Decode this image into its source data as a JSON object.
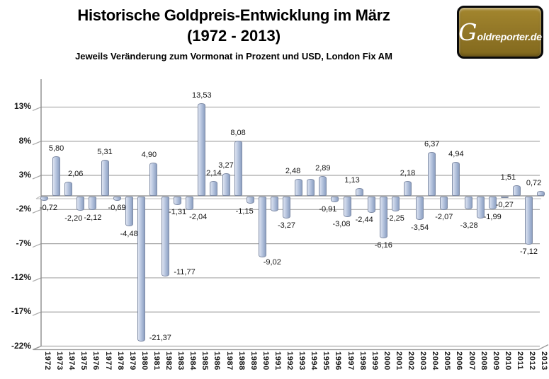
{
  "header": {
    "title_line1": "Historische Goldpreis-Entwicklung im März",
    "title_line2": "(1972 - 2013)",
    "subtitle": "Jeweils Veränderung zum Vormonat in Prozent und USD, London Fix AM",
    "logo": {
      "initial": "G",
      "rest": "oldreporter.de",
      "background": "#8e7423"
    }
  },
  "chart_data": {
    "type": "bar",
    "title": "Historische Goldpreis-Entwicklung im März (1972 - 2013)",
    "subtitle": "Jeweils Veränderung zum Vormonat in Prozent und USD, London Fix AM",
    "unit": "percent change month-over-month",
    "categories": [
      "1972",
      "1973",
      "1974",
      "1975",
      "1976",
      "1977",
      "1978",
      "1979",
      "1980",
      "1981",
      "1982",
      "1983",
      "1984",
      "1985",
      "1986",
      "1987",
      "1988",
      "1989",
      "1990",
      "1991",
      "1992",
      "1993",
      "1994",
      "1995",
      "1996",
      "1997",
      "1998",
      "1999",
      "2000",
      "2001",
      "2002",
      "2003",
      "2004",
      "2005",
      "2006",
      "2007",
      "2008",
      "2009",
      "2010",
      "2011",
      "2012",
      "2013"
    ],
    "values": [
      -0.72,
      5.8,
      2.06,
      -2.2,
      -2.12,
      5.31,
      -0.69,
      -4.48,
      -21.37,
      4.9,
      -11.77,
      -1.31,
      -2.04,
      13.53,
      2.14,
      3.27,
      8.08,
      -1.15,
      -9.02,
      -2.3,
      -3.27,
      2.48,
      2.5,
      2.89,
      -0.91,
      -3.08,
      1.13,
      -2.44,
      -6.16,
      -2.25,
      2.18,
      -3.54,
      6.37,
      -2.07,
      4.94,
      -2.0,
      -3.28,
      -1.99,
      -0.27,
      1.51,
      -7.12,
      0.72
    ],
    "bar_labels": [
      "-0,72",
      "5,80",
      "2,06",
      "-2,20",
      "-2,12",
      "5,31",
      "-0,69",
      "-4,48",
      "-21,37",
      "4,90",
      "-11,77",
      "-1,31",
      "-2,04",
      "13,53",
      "2,14",
      "3,27",
      "8,08",
      "-1,15",
      "-9,02",
      "",
      "-3,27",
      "2,48",
      "",
      "2,89",
      "-0,91",
      "-3,08",
      "1,13",
      "-2,44",
      "-6,16",
      "-2,25",
      "2,18",
      "-3,54",
      "6,37",
      "-2,07",
      "4,94",
      "",
      "-3,28",
      "-1,99",
      "-0,27",
      "1,51",
      "-7,12",
      "0,72"
    ],
    "unlabeled_bars_estimated_values": {
      "1991": -2.3,
      "1994": 2.5,
      "2007": -2.0
    },
    "yticks": {
      "labels": [
        "13%",
        "8%",
        "3%",
        "-2%",
        "-7%",
        "-12%",
        "-17%",
        "-22%"
      ],
      "values": [
        13,
        8,
        3,
        -2,
        -7,
        -12,
        -17,
        -22
      ]
    },
    "ylim": [
      -22,
      15.5
    ],
    "grid": true,
    "legend": false,
    "style_3d": true,
    "colors": {
      "bar_fill": "#b7c4de",
      "bar_fill_light": "#dde3f0",
      "bar_fill_dark": "#8da0c2",
      "bar_border": "#7f8ca6",
      "gridline": "#a8a8a8",
      "axis": "#8c8c8c",
      "label_text": "#141414",
      "background": "#ffffff"
    }
  }
}
